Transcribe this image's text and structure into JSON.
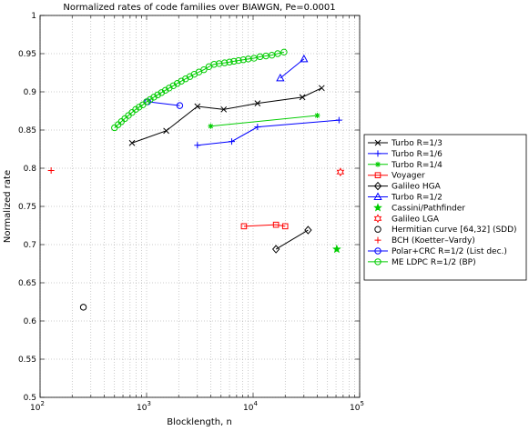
{
  "chart_data": {
    "type": "line",
    "title": "Normalized rates of code families over BIAWGN, Pe=0.0001",
    "xlabel": "Blocklength, n",
    "ylabel": "Normalized rate",
    "xscale": "log",
    "xlim": [
      100,
      100000
    ],
    "ylim": [
      0.5,
      1.0
    ],
    "grid": true,
    "legend_position": "outside-right",
    "x_tick_labels": [
      "10^2",
      "10^3",
      "10^4",
      "10^5"
    ],
    "y_tick_labels": [
      "0.5",
      "0.55",
      "0.6",
      "0.65",
      "0.7",
      "0.75",
      "0.8",
      "0.85",
      "0.9",
      "0.95",
      "1"
    ],
    "series": [
      {
        "name": "Turbo R=1/3",
        "color": "#000000",
        "marker": "x",
        "x": [
          730,
          1530,
          3000,
          5300,
          11000,
          29000,
          44000
        ],
        "y": [
          0.833,
          0.849,
          0.881,
          0.877,
          0.885,
          0.893,
          0.905
        ]
      },
      {
        "name": "Turbo R=1/6",
        "color": "#0000ff",
        "marker": "+",
        "x": [
          3000,
          6300,
          11000,
          64000
        ],
        "y": [
          0.83,
          0.835,
          0.854,
          0.863
        ]
      },
      {
        "name": "Turbo R=1/4",
        "color": "#00cc00",
        "marker": "*",
        "x": [
          4000,
          40000
        ],
        "y": [
          0.855,
          0.869
        ]
      },
      {
        "name": "Voyager",
        "color": "#ff0000",
        "marker": "s",
        "x": [
          8200,
          16400,
          20000
        ],
        "y": [
          0.724,
          0.726,
          0.724
        ]
      },
      {
        "name": "Galileo HGA",
        "color": "#000000",
        "marker": "d",
        "x": [
          16400,
          32800
        ],
        "y": [
          0.694,
          0.719
        ]
      },
      {
        "name": "Turbo R=1/2",
        "color": "#0000ff",
        "marker": "^",
        "x": [
          18000,
          30000
        ],
        "y": [
          0.918,
          0.943
        ]
      },
      {
        "name": "Cassini/Pathfinder",
        "color": "#00cc00",
        "marker": "p",
        "x": [
          61000
        ],
        "y": [
          0.694
        ]
      },
      {
        "name": "Galileo LGA",
        "color": "#ff0000",
        "marker": "h",
        "x": [
          66000
        ],
        "y": [
          0.795
        ]
      },
      {
        "name": "Hermitian curve [64,32] (SDD)",
        "color": "#000000",
        "marker": "o",
        "x": [
          255
        ],
        "y": [
          0.618
        ]
      },
      {
        "name": "BCH (Koetter–Vardy)",
        "color": "#ff0000",
        "marker": "+",
        "x": [
          127
        ],
        "y": [
          0.797
        ]
      },
      {
        "name": "Polar+CRC R=1/2 (List dec.)",
        "color": "#0000ff",
        "marker": "o",
        "x": [
          1024,
          2048
        ],
        "y": [
          0.887,
          0.882
        ]
      },
      {
        "name": "ME LDPC R=1/2 (BP)",
        "color": "#00cc00",
        "marker": "o",
        "x": [
          500,
          540,
          580,
          625,
          675,
          730,
          790,
          850,
          920,
          1000,
          1080,
          1170,
          1270,
          1380,
          1500,
          1630,
          1780,
          1940,
          2120,
          2320,
          2550,
          2800,
          3100,
          3450,
          3850,
          4300,
          4800,
          5400,
          6000,
          6600,
          7300,
          8100,
          9000,
          10200,
          11600,
          13200,
          15000,
          17000,
          19500
        ],
        "y": [
          0.853,
          0.857,
          0.861,
          0.865,
          0.869,
          0.873,
          0.877,
          0.88,
          0.883,
          0.887,
          0.89,
          0.893,
          0.896,
          0.899,
          0.902,
          0.905,
          0.908,
          0.911,
          0.914,
          0.917,
          0.92,
          0.923,
          0.926,
          0.929,
          0.933,
          0.936,
          0.937,
          0.938,
          0.939,
          0.94,
          0.941,
          0.942,
          0.943,
          0.944,
          0.946,
          0.947,
          0.948,
          0.95,
          0.952
        ]
      }
    ]
  }
}
